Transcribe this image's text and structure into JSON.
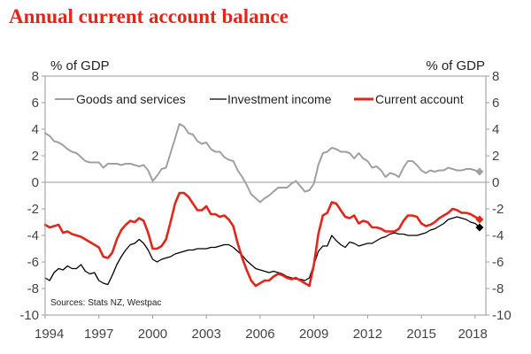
{
  "chart_data": {
    "type": "line",
    "title": "Annual current account balance",
    "ylabel_left": "% of GDP",
    "ylabel_right": "% of GDP",
    "source": "Sources: Stats NZ, Westpac",
    "ylim": [
      -10,
      8
    ],
    "yticks": [
      -10,
      -8,
      -6,
      -4,
      -2,
      0,
      2,
      4,
      6,
      8
    ],
    "xlim": [
      1994,
      2018.6
    ],
    "xticks": [
      1994,
      1997,
      2000,
      2003,
      2006,
      2009,
      2012,
      2015,
      2018
    ],
    "legend_position": "top",
    "series": [
      {
        "name": "Goods and services",
        "color": "#a0a0a0",
        "width": 2,
        "forecast_marker": [
          2018.25,
          0.8
        ],
        "points": [
          [
            1994,
            3.7
          ],
          [
            1994.25,
            3.5
          ],
          [
            1994.5,
            3.1
          ],
          [
            1994.75,
            3.0
          ],
          [
            1995,
            2.8
          ],
          [
            1995.25,
            2.5
          ],
          [
            1995.5,
            2.3
          ],
          [
            1995.75,
            2.2
          ],
          [
            1996,
            1.9
          ],
          [
            1996.25,
            1.6
          ],
          [
            1996.5,
            1.5
          ],
          [
            1996.75,
            1.5
          ],
          [
            1997,
            1.5
          ],
          [
            1997.25,
            1.1
          ],
          [
            1997.5,
            1.4
          ],
          [
            1997.75,
            1.4
          ],
          [
            1998,
            1.4
          ],
          [
            1998.25,
            1.3
          ],
          [
            1998.5,
            1.4
          ],
          [
            1998.75,
            1.4
          ],
          [
            1999,
            1.3
          ],
          [
            1999.25,
            1.2
          ],
          [
            1999.5,
            1.3
          ],
          [
            1999.75,
            0.9
          ],
          [
            2000,
            0.1
          ],
          [
            2000.25,
            0.5
          ],
          [
            2000.5,
            1.0
          ],
          [
            2000.75,
            1.1
          ],
          [
            2001,
            2.2
          ],
          [
            2001.25,
            3.3
          ],
          [
            2001.5,
            4.4
          ],
          [
            2001.75,
            4.2
          ],
          [
            2002,
            3.7
          ],
          [
            2002.25,
            3.6
          ],
          [
            2002.5,
            3.1
          ],
          [
            2002.75,
            2.9
          ],
          [
            2003,
            3.0
          ],
          [
            2003.25,
            2.5
          ],
          [
            2003.5,
            2.3
          ],
          [
            2003.75,
            2.3
          ],
          [
            2004,
            1.9
          ],
          [
            2004.25,
            1.7
          ],
          [
            2004.5,
            1.6
          ],
          [
            2004.75,
            0.9
          ],
          [
            2005,
            0.4
          ],
          [
            2005.25,
            -0.2
          ],
          [
            2005.5,
            -0.9
          ],
          [
            2005.75,
            -1.2
          ],
          [
            2006,
            -1.5
          ],
          [
            2006.25,
            -1.2
          ],
          [
            2006.5,
            -1.0
          ],
          [
            2006.75,
            -0.7
          ],
          [
            2007,
            -0.4
          ],
          [
            2007.25,
            -0.4
          ],
          [
            2007.5,
            -0.4
          ],
          [
            2007.75,
            -0.1
          ],
          [
            2008,
            0.1
          ],
          [
            2008.25,
            -0.3
          ],
          [
            2008.5,
            -0.7
          ],
          [
            2008.75,
            -0.6
          ],
          [
            2009,
            -0.1
          ],
          [
            2009.25,
            1.3
          ],
          [
            2009.5,
            2.2
          ],
          [
            2009.75,
            2.3
          ],
          [
            2010,
            2.6
          ],
          [
            2010.25,
            2.5
          ],
          [
            2010.5,
            2.3
          ],
          [
            2010.75,
            2.3
          ],
          [
            2011,
            2.2
          ],
          [
            2011.25,
            1.8
          ],
          [
            2011.5,
            2.2
          ],
          [
            2011.75,
            1.8
          ],
          [
            2012,
            1.6
          ],
          [
            2012.25,
            1.1
          ],
          [
            2012.5,
            1.2
          ],
          [
            2012.75,
            0.9
          ],
          [
            2013,
            0.4
          ],
          [
            2013.25,
            0.7
          ],
          [
            2013.5,
            0.6
          ],
          [
            2013.75,
            0.4
          ],
          [
            2014,
            1.1
          ],
          [
            2014.25,
            1.6
          ],
          [
            2014.5,
            1.6
          ],
          [
            2014.75,
            1.3
          ],
          [
            2015,
            0.9
          ],
          [
            2015.25,
            0.7
          ],
          [
            2015.5,
            0.9
          ],
          [
            2015.75,
            0.8
          ],
          [
            2016,
            0.9
          ],
          [
            2016.25,
            0.9
          ],
          [
            2016.5,
            1.1
          ],
          [
            2016.75,
            1.0
          ],
          [
            2017,
            0.9
          ],
          [
            2017.25,
            0.9
          ],
          [
            2017.5,
            1.0
          ],
          [
            2017.75,
            1.0
          ],
          [
            2018,
            0.9
          ],
          [
            2018.25,
            0.8
          ]
        ]
      },
      {
        "name": "Investment income",
        "color": "#000000",
        "width": 1.3,
        "forecast_marker": [
          2018.25,
          -3.4
        ],
        "points": [
          [
            1994,
            -7.2
          ],
          [
            1994.25,
            -7.4
          ],
          [
            1994.5,
            -6.8
          ],
          [
            1994.75,
            -6.5
          ],
          [
            1995,
            -6.6
          ],
          [
            1995.25,
            -6.3
          ],
          [
            1995.5,
            -6.5
          ],
          [
            1995.75,
            -6.5
          ],
          [
            1996,
            -6.2
          ],
          [
            1996.25,
            -6.7
          ],
          [
            1996.5,
            -6.9
          ],
          [
            1996.75,
            -6.8
          ],
          [
            1997,
            -7.4
          ],
          [
            1997.25,
            -7.6
          ],
          [
            1997.5,
            -7.7
          ],
          [
            1997.75,
            -7.0
          ],
          [
            1998,
            -6.2
          ],
          [
            1998.25,
            -5.6
          ],
          [
            1998.5,
            -5.1
          ],
          [
            1998.75,
            -4.7
          ],
          [
            1999,
            -4.6
          ],
          [
            1999.25,
            -4.3
          ],
          [
            1999.5,
            -4.6
          ],
          [
            1999.75,
            -5.1
          ],
          [
            2000,
            -5.8
          ],
          [
            2000.25,
            -6.0
          ],
          [
            2000.5,
            -5.8
          ],
          [
            2000.75,
            -5.7
          ],
          [
            2001,
            -5.6
          ],
          [
            2001.25,
            -5.4
          ],
          [
            2001.5,
            -5.3
          ],
          [
            2001.75,
            -5.2
          ],
          [
            2002,
            -5.1
          ],
          [
            2002.25,
            -5.1
          ],
          [
            2002.5,
            -5.0
          ],
          [
            2002.75,
            -5.0
          ],
          [
            2003,
            -5.0
          ],
          [
            2003.25,
            -4.9
          ],
          [
            2003.5,
            -4.9
          ],
          [
            2003.75,
            -4.8
          ],
          [
            2004,
            -4.7
          ],
          [
            2004.25,
            -4.7
          ],
          [
            2004.5,
            -4.9
          ],
          [
            2004.75,
            -5.2
          ],
          [
            2005,
            -5.5
          ],
          [
            2005.25,
            -5.9
          ],
          [
            2005.5,
            -6.2
          ],
          [
            2005.75,
            -6.5
          ],
          [
            2006,
            -6.6
          ],
          [
            2006.25,
            -6.7
          ],
          [
            2006.5,
            -6.8
          ],
          [
            2006.75,
            -6.7
          ],
          [
            2007,
            -6.8
          ],
          [
            2007.25,
            -6.9
          ],
          [
            2007.5,
            -7.1
          ],
          [
            2007.75,
            -7.2
          ],
          [
            2008,
            -7.3
          ],
          [
            2008.25,
            -7.3
          ],
          [
            2008.5,
            -7.4
          ],
          [
            2008.75,
            -7.2
          ],
          [
            2009,
            -6.2
          ],
          [
            2009.25,
            -5.2
          ],
          [
            2009.5,
            -4.8
          ],
          [
            2009.75,
            -4.8
          ],
          [
            2010,
            -4.0
          ],
          [
            2010.25,
            -4.4
          ],
          [
            2010.5,
            -4.7
          ],
          [
            2010.75,
            -4.9
          ],
          [
            2011,
            -4.5
          ],
          [
            2011.25,
            -4.6
          ],
          [
            2011.5,
            -4.8
          ],
          [
            2011.75,
            -4.7
          ],
          [
            2012,
            -4.6
          ],
          [
            2012.25,
            -4.6
          ],
          [
            2012.5,
            -4.4
          ],
          [
            2012.75,
            -4.2
          ],
          [
            2013,
            -4.1
          ],
          [
            2013.25,
            -3.9
          ],
          [
            2013.5,
            -3.8
          ],
          [
            2013.75,
            -3.9
          ],
          [
            2014,
            -3.9
          ],
          [
            2014.25,
            -4.0
          ],
          [
            2014.5,
            -4.0
          ],
          [
            2014.75,
            -4.0
          ],
          [
            2015,
            -3.9
          ],
          [
            2015.25,
            -3.8
          ],
          [
            2015.5,
            -3.6
          ],
          [
            2015.75,
            -3.5
          ],
          [
            2016,
            -3.3
          ],
          [
            2016.25,
            -3.1
          ],
          [
            2016.5,
            -2.8
          ],
          [
            2016.75,
            -2.7
          ],
          [
            2017,
            -2.6
          ],
          [
            2017.25,
            -2.7
          ],
          [
            2017.5,
            -2.8
          ],
          [
            2017.75,
            -3.0
          ],
          [
            2018,
            -3.1
          ],
          [
            2018.25,
            -3.4
          ]
        ]
      },
      {
        "name": "Current account",
        "color": "#e1261c",
        "width": 2.6,
        "forecast_marker": [
          2018.25,
          -2.8
        ],
        "points": [
          [
            1994,
            -3.2
          ],
          [
            1994.25,
            -3.4
          ],
          [
            1994.5,
            -3.3
          ],
          [
            1994.75,
            -3.2
          ],
          [
            1995,
            -3.8
          ],
          [
            1995.25,
            -3.7
          ],
          [
            1995.5,
            -3.9
          ],
          [
            1995.75,
            -4.0
          ],
          [
            1996,
            -4.1
          ],
          [
            1996.25,
            -4.3
          ],
          [
            1996.5,
            -4.5
          ],
          [
            1996.75,
            -4.7
          ],
          [
            1997,
            -4.9
          ],
          [
            1997.25,
            -5.6
          ],
          [
            1997.5,
            -5.7
          ],
          [
            1997.75,
            -5.3
          ],
          [
            1998,
            -4.3
          ],
          [
            1998.25,
            -3.6
          ],
          [
            1998.5,
            -3.2
          ],
          [
            1998.75,
            -2.9
          ],
          [
            1999,
            -3.0
          ],
          [
            1999.25,
            -2.7
          ],
          [
            1999.5,
            -2.9
          ],
          [
            1999.75,
            -3.8
          ],
          [
            2000,
            -5.0
          ],
          [
            2000.25,
            -5.0
          ],
          [
            2000.5,
            -4.8
          ],
          [
            2000.75,
            -4.3
          ],
          [
            2001,
            -3.0
          ],
          [
            2001.25,
            -1.6
          ],
          [
            2001.5,
            -0.8
          ],
          [
            2001.75,
            -0.8
          ],
          [
            2002,
            -1.1
          ],
          [
            2002.25,
            -1.6
          ],
          [
            2002.5,
            -2.1
          ],
          [
            2002.75,
            -2.1
          ],
          [
            2003,
            -1.8
          ],
          [
            2003.25,
            -2.4
          ],
          [
            2003.5,
            -2.4
          ],
          [
            2003.75,
            -2.6
          ],
          [
            2004,
            -2.5
          ],
          [
            2004.25,
            -2.8
          ],
          [
            2004.5,
            -3.3
          ],
          [
            2004.75,
            -4.6
          ],
          [
            2005,
            -5.7
          ],
          [
            2005.25,
            -6.6
          ],
          [
            2005.5,
            -7.4
          ],
          [
            2005.75,
            -7.8
          ],
          [
            2006,
            -7.6
          ],
          [
            2006.25,
            -7.4
          ],
          [
            2006.5,
            -7.4
          ],
          [
            2006.75,
            -7.1
          ],
          [
            2007,
            -6.9
          ],
          [
            2007.25,
            -7.0
          ],
          [
            2007.5,
            -7.2
          ],
          [
            2007.75,
            -7.3
          ],
          [
            2008,
            -7.2
          ],
          [
            2008.25,
            -7.4
          ],
          [
            2008.5,
            -7.6
          ],
          [
            2008.75,
            -7.8
          ],
          [
            2009,
            -6.2
          ],
          [
            2009.25,
            -3.9
          ],
          [
            2009.5,
            -2.5
          ],
          [
            2009.75,
            -2.3
          ],
          [
            2010,
            -1.5
          ],
          [
            2010.25,
            -1.6
          ],
          [
            2010.5,
            -2.1
          ],
          [
            2010.75,
            -2.6
          ],
          [
            2011,
            -2.7
          ],
          [
            2011.25,
            -2.5
          ],
          [
            2011.5,
            -3.1
          ],
          [
            2011.75,
            -2.9
          ],
          [
            2012,
            -3.0
          ],
          [
            2012.25,
            -3.4
          ],
          [
            2012.5,
            -3.4
          ],
          [
            2012.75,
            -3.5
          ],
          [
            2013,
            -3.7
          ],
          [
            2013.25,
            -3.7
          ],
          [
            2013.5,
            -3.7
          ],
          [
            2013.75,
            -3.5
          ],
          [
            2014,
            -2.9
          ],
          [
            2014.25,
            -2.5
          ],
          [
            2014.5,
            -2.5
          ],
          [
            2014.75,
            -2.6
          ],
          [
            2015,
            -3.1
          ],
          [
            2015.25,
            -3.3
          ],
          [
            2015.5,
            -3.2
          ],
          [
            2015.75,
            -3.0
          ],
          [
            2016,
            -2.7
          ],
          [
            2016.25,
            -2.5
          ],
          [
            2016.5,
            -2.3
          ],
          [
            2016.75,
            -2.0
          ],
          [
            2017,
            -2.1
          ],
          [
            2017.25,
            -2.3
          ],
          [
            2017.5,
            -2.3
          ],
          [
            2017.75,
            -2.4
          ],
          [
            2018,
            -2.6
          ],
          [
            2018.25,
            -2.8
          ]
        ]
      }
    ]
  }
}
